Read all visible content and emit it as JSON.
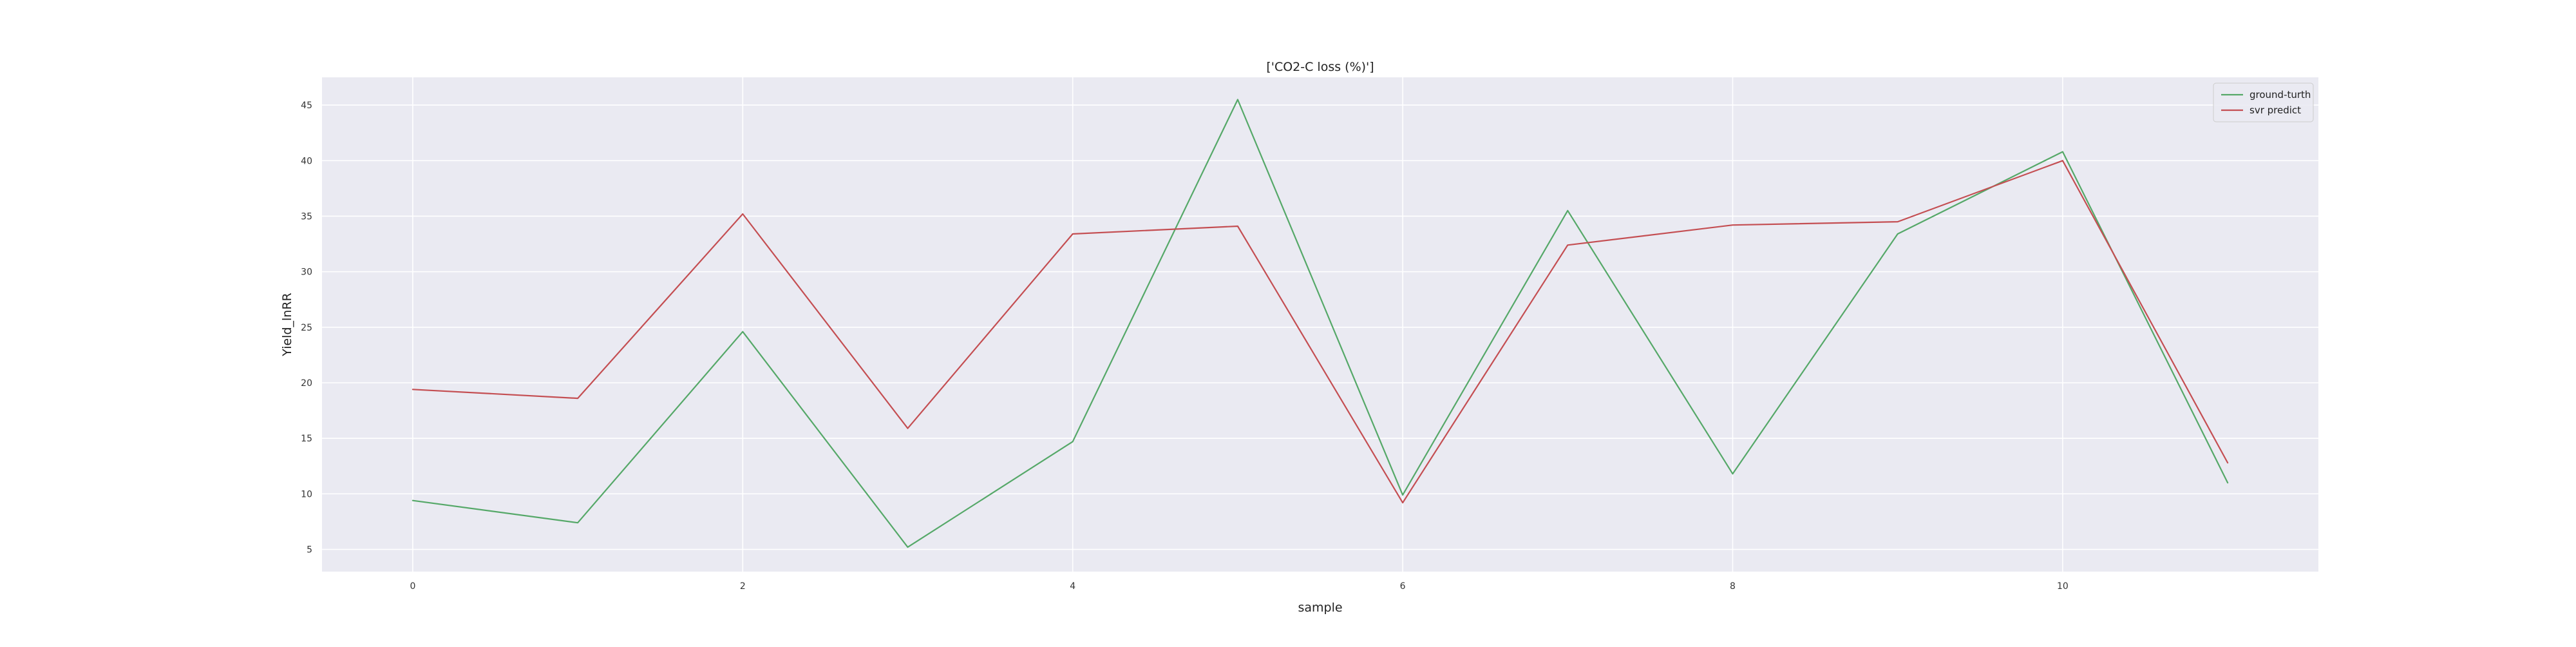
{
  "chart_data": {
    "type": "line",
    "title": "['CO2-C loss (%)']",
    "xlabel": "sample",
    "ylabel": "Yield_lnRR",
    "x": [
      0,
      1,
      2,
      3,
      4,
      5,
      6,
      7,
      8,
      9,
      10,
      11
    ],
    "x_ticks": [
      0,
      2,
      4,
      6,
      8,
      10
    ],
    "y_ticks": [
      5,
      10,
      15,
      20,
      25,
      30,
      35,
      40,
      45
    ],
    "xlim": [
      -0.55,
      11.55
    ],
    "ylim": [
      3,
      47.5
    ],
    "grid": true,
    "legend_position": "top-right",
    "background_color": "#eaeaf2",
    "series": [
      {
        "name": "ground-turth",
        "color": "#55a868",
        "values": [
          9.4,
          7.4,
          24.6,
          5.2,
          14.7,
          45.5,
          9.9,
          35.5,
          11.8,
          33.4,
          40.8,
          11.0
        ]
      },
      {
        "name": "svr predict",
        "color": "#c44e52",
        "values": [
          19.4,
          18.6,
          35.2,
          15.9,
          33.4,
          34.1,
          9.2,
          32.4,
          34.2,
          34.5,
          40.0,
          12.8
        ]
      }
    ]
  }
}
